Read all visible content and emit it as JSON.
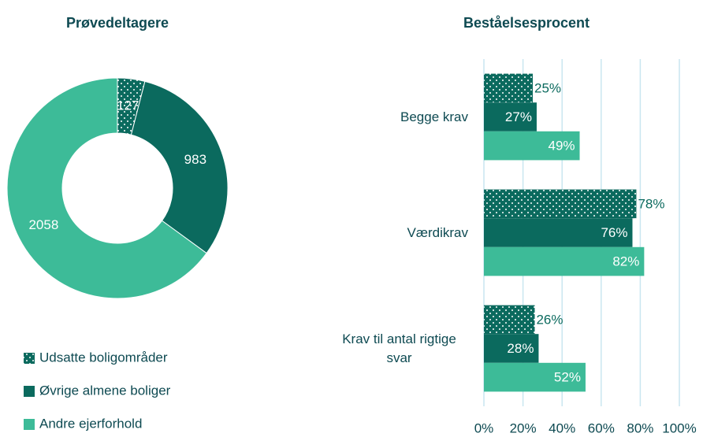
{
  "chart_data": [
    {
      "type": "pie",
      "title": "Prøvedeltagere",
      "donut": true,
      "categories": [
        "Udsatte boligområder",
        "Øvrige almene boliger",
        "Andre ejerforhold"
      ],
      "values": [
        127,
        983,
        2058
      ],
      "colors": [
        "#0b6a5e",
        "#0b6a5e",
        "#3dbb98"
      ],
      "patterns": [
        "dots",
        "solid",
        "solid"
      ],
      "legend": "bottom-left"
    },
    {
      "type": "barh",
      "title": "Beståelsesprocent",
      "categories": [
        "Begge krav",
        "Værdikrav",
        "Krav til antal rigtige svar"
      ],
      "series": [
        {
          "color": "#0b6a5e",
          "pattern": "dots",
          "values": [
            25,
            78,
            26
          ],
          "value_labels": [
            "25%",
            "78%",
            "26%"
          ]
        },
        {
          "color": "#0b6a5e",
          "pattern": "solid",
          "values": [
            27,
            76,
            28
          ],
          "value_labels": [
            "27%",
            "76%",
            "28%"
          ]
        },
        {
          "color": "#3dbb98",
          "pattern": "solid",
          "values": [
            49,
            82,
            52
          ],
          "value_labels": [
            "49%",
            "82%",
            "52%"
          ]
        }
      ],
      "xlim": [
        0,
        100
      ],
      "xticks": [
        {
          "value": 0,
          "label": "0%"
        },
        {
          "value": 20,
          "label": "20%"
        },
        {
          "value": 40,
          "label": "40%"
        },
        {
          "value": 60,
          "label": "60%"
        },
        {
          "value": 80,
          "label": "80%"
        },
        {
          "value": 100,
          "label": "100%"
        }
      ],
      "grid": true
    }
  ]
}
